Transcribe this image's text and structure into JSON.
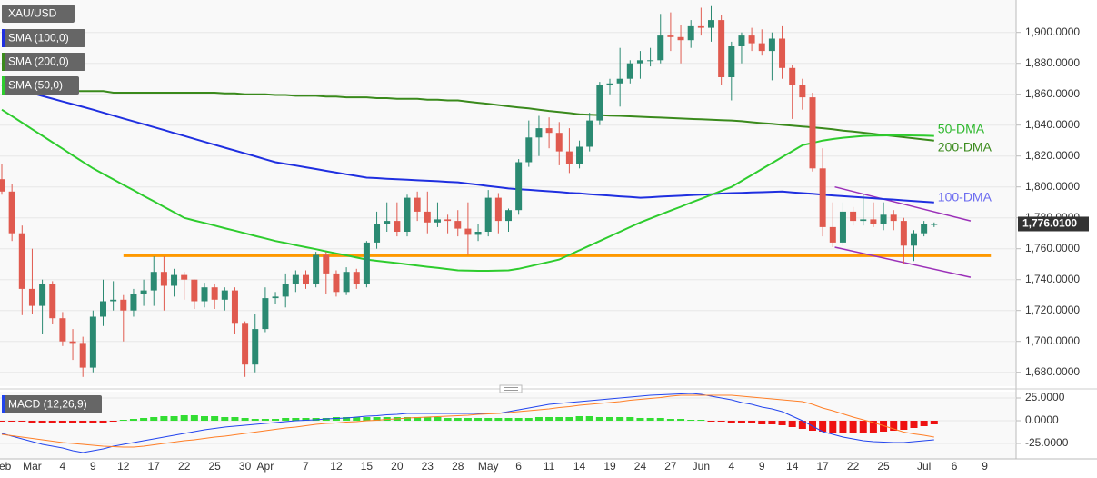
{
  "chart_data": {
    "type": "candlestick",
    "symbol": "XAU/USD",
    "categories": [
      "Feb",
      null,
      null,
      "Mar",
      null,
      null,
      "4",
      null,
      null,
      "9",
      null,
      null,
      "12",
      null,
      null,
      "17",
      null,
      null,
      "22",
      null,
      null,
      "25",
      null,
      null,
      "30",
      null,
      "Apr",
      null,
      null,
      null,
      "7",
      null,
      null,
      "12",
      null,
      null,
      "15",
      null,
      null,
      "20",
      null,
      null,
      "23",
      null,
      null,
      "28",
      null,
      null,
      "May",
      null,
      null,
      "6",
      null,
      null,
      "11",
      null,
      null,
      "14",
      null,
      null,
      "19",
      null,
      null,
      "24",
      null,
      null,
      "27",
      null,
      null,
      "Jun",
      null,
      null,
      "4",
      null,
      null,
      "9",
      null,
      null,
      "14",
      null,
      null,
      "17",
      null,
      null,
      "22",
      null,
      null,
      "25",
      null,
      null,
      null,
      "Jul",
      null,
      null,
      "6",
      null,
      null,
      "9",
      null,
      null
    ],
    "open": [
      1805,
      1797,
      1770,
      1734,
      1723,
      1737,
      1715,
      1700,
      1699,
      1683,
      1716,
      1726,
      1727,
      1720,
      1731,
      1733,
      1745,
      1736,
      1743,
      1740,
      1726,
      1735,
      1727,
      1733,
      1712,
      1685,
      1708,
      1728,
      1729,
      1737,
      1743,
      1737,
      1756,
      1744,
      1732,
      1745,
      1737,
      1764,
      1776,
      1778,
      1771,
      1793,
      1784,
      1777,
      1779,
      1778,
      1773,
      1769,
      1771,
      1793,
      1778,
      1785,
      1816,
      1832,
      1838,
      1835,
      1823,
      1815,
      1826,
      1843,
      1866,
      1867,
      1870,
      1880,
      1882,
      1882,
      1898,
      1897,
      1895,
      1904,
      1903,
      1908,
      1871,
      1891,
      1898,
      1893,
      1888,
      1896,
      1877,
      1866,
      1858,
      1812,
      1774,
      1764,
      1784,
      1778,
      1779,
      1776,
      1782,
      1778,
      1762,
      1770,
      1776,
      null,
      null,
      null,
      null,
      null,
      null,
      null
    ],
    "high": [
      1815,
      1802,
      1775,
      1760,
      1740,
      1739,
      1719,
      1708,
      1703,
      1720,
      1740,
      1739,
      1730,
      1734,
      1740,
      1755,
      1755,
      1747,
      1745,
      1740,
      1738,
      1737,
      1735,
      1735,
      1713,
      1718,
      1735,
      1732,
      1744,
      1746,
      1746,
      1758,
      1758,
      1746,
      1748,
      1747,
      1765,
      1784,
      1790,
      1790,
      1795,
      1797,
      1797,
      1790,
      1782,
      1785,
      1790,
      1776,
      1798,
      1796,
      1786,
      1818,
      1843,
      1846,
      1845,
      1842,
      1838,
      1830,
      1848,
      1868,
      1870,
      1890,
      1882,
      1888,
      1890,
      1912,
      1913,
      1905,
      1908,
      1916,
      1917,
      1911,
      1894,
      1900,
      1903,
      1902,
      1900,
      1904,
      1879,
      1870,
      1861,
      1825,
      1790,
      1790,
      1787,
      1795,
      1790,
      1790,
      1785,
      1780,
      1772,
      1778,
      1777,
      null,
      null,
      null,
      null,
      null,
      null,
      null
    ],
    "low": [
      1795,
      1765,
      1717,
      1718,
      1705,
      1711,
      1697,
      1688,
      1677,
      1680,
      1710,
      1720,
      1700,
      1716,
      1723,
      1723,
      1720,
      1729,
      1727,
      1721,
      1722,
      1721,
      1720,
      1705,
      1677,
      1680,
      1706,
      1724,
      1722,
      1732,
      1734,
      1735,
      1731,
      1729,
      1730,
      1734,
      1735,
      1760,
      1771,
      1768,
      1768,
      1778,
      1770,
      1774,
      1770,
      1768,
      1756,
      1765,
      1768,
      1770,
      1771,
      1782,
      1813,
      1820,
      1825,
      1814,
      1809,
      1812,
      1823,
      1840,
      1860,
      1852,
      1867,
      1870,
      1878,
      1880,
      1888,
      1880,
      1890,
      1898,
      1894,
      1866,
      1856,
      1880,
      1888,
      1885,
      1869,
      1870,
      1844,
      1850,
      1810,
      1768,
      1761,
      1762,
      1775,
      1775,
      1774,
      1772,
      1772,
      1750,
      1752,
      1768,
      1774,
      null,
      null,
      null,
      null,
      null,
      null,
      null
    ],
    "close": [
      1797,
      1770,
      1734,
      1723,
      1737,
      1715,
      1700,
      1699,
      1683,
      1716,
      1726,
      1727,
      1720,
      1731,
      1733,
      1745,
      1736,
      1743,
      1740,
      1726,
      1735,
      1727,
      1733,
      1712,
      1685,
      1708,
      1728,
      1729,
      1737,
      1743,
      1737,
      1756,
      1744,
      1732,
      1745,
      1737,
      1764,
      1776,
      1778,
      1771,
      1793,
      1784,
      1777,
      1779,
      1778,
      1773,
      1769,
      1771,
      1793,
      1778,
      1785,
      1816,
      1832,
      1838,
      1835,
      1823,
      1815,
      1826,
      1843,
      1866,
      1867,
      1870,
      1880,
      1882,
      1882,
      1898,
      1897,
      1895,
      1904,
      1903,
      1908,
      1871,
      1891,
      1898,
      1893,
      1888,
      1896,
      1877,
      1866,
      1858,
      1812,
      1774,
      1764,
      1784,
      1778,
      1779,
      1776,
      1782,
      1778,
      1762,
      1770,
      1776,
      1776,
      null,
      null,
      null,
      null,
      null,
      null,
      null
    ],
    "up_color": "#2b8a72",
    "down_color": "#e05a4f",
    "series": [
      {
        "name": "SMA (100,0)",
        "label": "100-DMA",
        "color": "#1f2fe0",
        "label_color": "#6b6bf0",
        "values": [
          1866,
          1864.2,
          1862.4,
          1860.7,
          1858.9,
          1857.1,
          1855.3,
          1853.6,
          1851.8,
          1850,
          1848.1,
          1846.2,
          1844.3,
          1842.4,
          1840.6,
          1838.7,
          1836.8,
          1834.9,
          1833,
          1831.1,
          1829.2,
          1827.3,
          1825.4,
          1823.6,
          1821.7,
          1819.8,
          1817.9,
          1816,
          1814.9,
          1813.8,
          1812.7,
          1811.6,
          1810.4,
          1809.3,
          1808.2,
          1807.1,
          1806,
          1805.7,
          1805.3,
          1805,
          1804.7,
          1804.3,
          1804,
          1803.7,
          1803.3,
          1803,
          1802.2,
          1801.4,
          1800.6,
          1799.8,
          1799,
          1798.5,
          1798.1,
          1797.6,
          1797.2,
          1796.7,
          1796.2,
          1795.8,
          1795.3,
          1794.8,
          1794.4,
          1793.9,
          1793.5,
          1793,
          1793.3,
          1793.7,
          1794,
          1794.3,
          1794.7,
          1795,
          1795.3,
          1795.7,
          1796,
          1796.2,
          1796.4,
          1796.6,
          1796.8,
          1797,
          1796.5,
          1796,
          1795.5,
          1795,
          1794.5,
          1794,
          1793.6,
          1793.1,
          1792.7,
          1792.2,
          1791.8,
          1791.3,
          1790.9,
          1790.4,
          1790,
          null,
          null,
          null,
          null,
          null,
          null,
          null
        ]
      },
      {
        "name": "SMA (200,0)",
        "label": "200-DMA",
        "color": "#3a8a1c",
        "label_color": "#3a8a1c",
        "values": [
          1862,
          1862,
          1862,
          1862,
          1862,
          1862,
          1862,
          1862,
          1862,
          1862,
          1862,
          1861,
          1861,
          1861,
          1861,
          1861,
          1861,
          1861,
          1861,
          1861,
          1861,
          1861,
          1860.5,
          1860.5,
          1860,
          1860,
          1860,
          1859.5,
          1859.5,
          1859,
          1859,
          1859,
          1858.5,
          1858.5,
          1858,
          1858,
          1858,
          1857.5,
          1857.5,
          1857,
          1857,
          1857,
          1856.5,
          1856.5,
          1856,
          1856,
          1855.2,
          1854.5,
          1853.8,
          1853,
          1852.2,
          1851.5,
          1850.8,
          1850,
          1849.2,
          1848.5,
          1847.8,
          1847,
          1846.7,
          1846.5,
          1846.2,
          1846,
          1845.7,
          1845.4,
          1845.1,
          1844.9,
          1844.6,
          1844.3,
          1844,
          1843.8,
          1843.5,
          1843.2,
          1843,
          1842.5,
          1841.9,
          1841.3,
          1840.8,
          1840.2,
          1839.7,
          1839.1,
          1838.6,
          1838,
          1837.3,
          1836.5,
          1835.8,
          1835.1,
          1834.4,
          1833.6,
          1832.9,
          1832.2,
          1831.5,
          1830.7,
          1830,
          null,
          null,
          null,
          null,
          null,
          null,
          null
        ]
      },
      {
        "name": "SMA (50,0)",
        "label": "50-DMA",
        "color": "#2ecc2e",
        "label_color": "#2eb82e",
        "values": [
          1850,
          1845.8,
          1841.6,
          1837.3,
          1833.1,
          1828.9,
          1824.7,
          1820.4,
          1816.2,
          1812,
          1808.4,
          1804.9,
          1801.3,
          1797.8,
          1794.2,
          1790.7,
          1787.1,
          1783.6,
          1780,
          1778.3,
          1776.7,
          1775,
          1773.3,
          1771.7,
          1770,
          1768.3,
          1766.7,
          1765,
          1763.7,
          1762.3,
          1761,
          1759.7,
          1758.3,
          1757,
          1755.7,
          1754.3,
          1753,
          1752.2,
          1751.4,
          1750.7,
          1749.9,
          1749.1,
          1748.3,
          1747.6,
          1746.8,
          1746,
          1745.8,
          1745.7,
          1745.7,
          1745.8,
          1746,
          1747,
          1748.5,
          1750,
          1751.5,
          1753,
          1756,
          1759,
          1762,
          1765,
          1768,
          1771,
          1774,
          1777,
          1779.6,
          1782.1,
          1784.7,
          1787.2,
          1789.8,
          1792.3,
          1794.9,
          1797.4,
          1800,
          1803.9,
          1807.7,
          1811.6,
          1815.4,
          1819.3,
          1823.1,
          1827,
          1828.5,
          1830,
          1831,
          1831.8,
          1832.4,
          1833,
          1833.2,
          1833.3,
          1833.4,
          1833.4,
          1833.3,
          1833.2,
          1833,
          null,
          null,
          null,
          null,
          null,
          null,
          null
        ]
      }
    ],
    "levels": [
      {
        "color": "#ff9900",
        "x": [
          12,
          97.6
        ],
        "values": [
          1755.5,
          1755.5
        ]
      },
      {
        "color": "#9b30b8",
        "x": [
          82.2,
          95.6
        ],
        "values": [
          1800,
          1778
        ]
      },
      {
        "color": "#9b30b8",
        "x": [
          82.2,
          95.6
        ],
        "values": [
          1761,
          1741.5
        ]
      }
    ],
    "ylim": [
      1671,
      1921
    ],
    "yticks": [
      {
        "value": 1680,
        "label": "1,680.0000"
      },
      {
        "value": 1700,
        "label": "1,700.0000"
      },
      {
        "value": 1720,
        "label": "1,720.0000"
      },
      {
        "value": 1740,
        "label": "1,740.0000"
      },
      {
        "value": 1760,
        "label": "1,760.0000"
      },
      {
        "value": 1780,
        "label": "1,780.0000"
      },
      {
        "value": 1800,
        "label": "1,800.0000"
      },
      {
        "value": 1820,
        "label": "1,820.0000"
      },
      {
        "value": 1840,
        "label": "1,840.0000"
      },
      {
        "value": 1860,
        "label": "1,860.0000"
      },
      {
        "value": 1880,
        "label": "1,880.0000"
      },
      {
        "value": 1900,
        "label": "1,900.0000"
      }
    ],
    "grid": true,
    "last_price": {
      "value": 1776.01,
      "label": "1,776.0100"
    },
    "macd": {
      "name": "MACD (12,26,9)",
      "ylim": [
        -42,
        33
      ],
      "yticks": [
        {
          "value": 25,
          "label": "25.0000"
        },
        {
          "value": 0,
          "label": "0.0000"
        },
        {
          "value": -25,
          "label": "-25.0000"
        }
      ],
      "macd_color": "#2244ee",
      "signal_color": "#ff7f27",
      "hist_up_color": "#33dd33",
      "hist_down_color": "#ee1111",
      "macd": [
        -14,
        -17,
        -20,
        -23,
        -26,
        -28,
        -30,
        -33,
        -35,
        -33,
        -31,
        -28,
        -26,
        -24,
        -22,
        -20,
        -18,
        -16,
        -14,
        -12,
        -10,
        -8.5,
        -7,
        -6,
        -5,
        -4,
        -3,
        -2,
        -1,
        0,
        0.5,
        1,
        2,
        2.5,
        3,
        4,
        5,
        5.5,
        6.5,
        7,
        8,
        8,
        8,
        8,
        8,
        8,
        8,
        8,
        8,
        8,
        10,
        12,
        14,
        16,
        18,
        19,
        20,
        21,
        22,
        23,
        24,
        25,
        26,
        27,
        28,
        28.5,
        29,
        29.5,
        30,
        29,
        27,
        25,
        23,
        20,
        18,
        15,
        13,
        10,
        5,
        0,
        -6,
        -12,
        -15,
        -18,
        -20,
        -22,
        -23,
        -23.5,
        -24,
        -24,
        -23,
        -22,
        -21,
        null,
        null,
        null,
        null,
        null,
        null,
        null
      ],
      "signal": [
        -15,
        -16.5,
        -18,
        -19.5,
        -21,
        -22.5,
        -24,
        -25,
        -26,
        -27,
        -28,
        -28.5,
        -29,
        -29,
        -28,
        -26.5,
        -25,
        -23.5,
        -22,
        -21,
        -19.5,
        -18,
        -17,
        -15.5,
        -14,
        -12.5,
        -11,
        -9.5,
        -8,
        -7,
        -5.5,
        -4,
        -3,
        -2.5,
        -1.5,
        -1,
        0,
        0.5,
        1.5,
        2,
        3,
        3.5,
        4,
        4.5,
        5,
        5.5,
        6,
        7,
        7.5,
        8,
        9,
        10,
        11,
        12,
        13,
        14.5,
        15.5,
        17,
        18,
        19,
        20,
        21,
        22.5,
        23.5,
        24.5,
        25.5,
        27,
        28,
        28,
        28,
        28,
        28,
        28,
        27,
        26,
        25,
        24,
        23,
        22,
        21,
        18,
        14,
        11,
        7.5,
        4,
        1,
        -2,
        -5.5,
        -9,
        -12.5,
        -14.5,
        -16,
        -18,
        null,
        null,
        null,
        null,
        null,
        null,
        null
      ],
      "histogram": [
        -1,
        -1,
        -1,
        -2,
        -2,
        -2,
        -2,
        -2,
        -2,
        -2,
        -2,
        -1,
        1,
        2,
        3,
        4,
        5,
        5,
        6,
        6,
        5,
        5,
        4,
        4,
        3,
        2,
        2,
        2,
        3,
        3,
        3,
        3,
        3,
        4,
        4,
        4,
        4,
        4,
        4,
        4,
        4,
        4,
        4,
        4,
        3,
        3,
        3,
        3,
        3,
        3,
        3,
        3,
        3,
        4,
        4,
        4,
        4,
        5,
        5,
        4,
        4,
        4,
        4,
        3,
        3,
        3,
        2,
        2,
        1,
        1,
        -1,
        -1,
        -2,
        -3,
        -3,
        -4,
        -4,
        -5,
        -7,
        -9,
        -11,
        -12,
        -13,
        -13,
        -13,
        -13,
        -13,
        -12,
        -11,
        -10,
        -8,
        -6,
        -4,
        null,
        null,
        null,
        null,
        null,
        null,
        null
      ]
    }
  }
}
